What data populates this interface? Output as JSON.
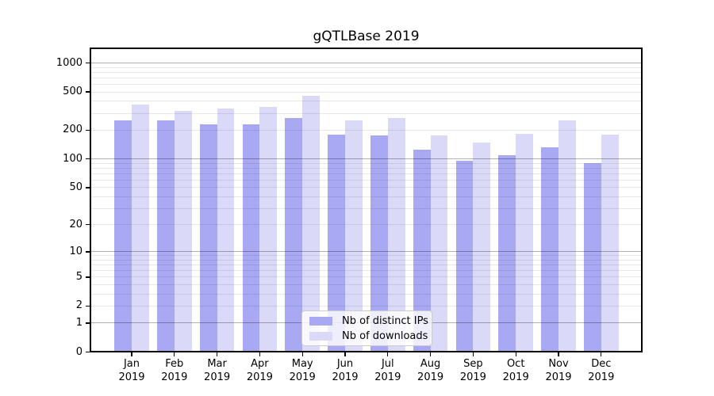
{
  "chart_data": {
    "type": "bar",
    "title": "gQTLBase 2019",
    "categories": [
      "Jan",
      "Feb",
      "Mar",
      "Apr",
      "May",
      "Jun",
      "Jul",
      "Aug",
      "Sep",
      "Oct",
      "Nov",
      "Dec"
    ],
    "category_line2": "2019",
    "series": [
      {
        "name": "Nb of distinct IPs",
        "color": "#a9a9f3",
        "values": [
          255,
          255,
          230,
          230,
          268,
          180,
          175,
          125,
          95,
          110,
          132,
          91
        ]
      },
      {
        "name": "Nb of downloads",
        "color": "#dadaf8",
        "values": [
          370,
          320,
          335,
          350,
          460,
          255,
          268,
          178,
          150,
          185,
          255,
          180
        ]
      }
    ],
    "xlabel": "",
    "ylabel": "",
    "y_scale": "log1p",
    "y_ticks": [
      0,
      1,
      2,
      5,
      10,
      20,
      50,
      100,
      200,
      500,
      1000
    ],
    "ylim": [
      0,
      1450
    ],
    "grid": true,
    "grid_major_values": [
      1,
      10,
      100,
      1000
    ],
    "legend_position": "lower center",
    "colors": {
      "background": "#ffffff",
      "axis": "#000000",
      "grid_major": "rgba(0,0,0,0.30)",
      "grid_minor": "rgba(0,0,0,0.09)",
      "legend_border": "#cccccc"
    }
  }
}
